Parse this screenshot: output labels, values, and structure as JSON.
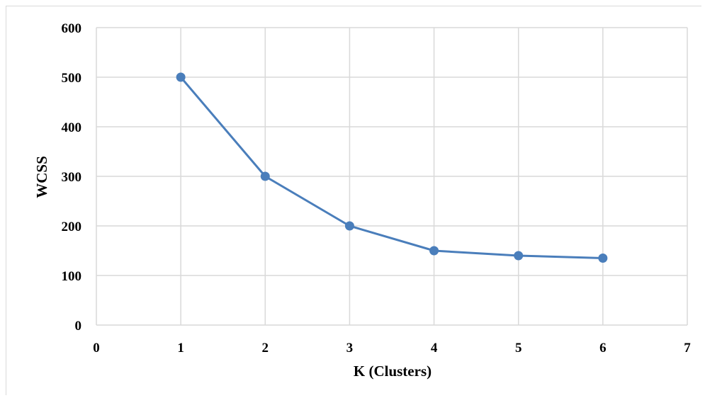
{
  "chart_data": {
    "type": "scatter",
    "mode": "lines+markers",
    "title": "",
    "xlabel": "K (Clusters)",
    "ylabel": "WCSS",
    "xlim": [
      0,
      7
    ],
    "ylim": [
      0,
      600
    ],
    "x_ticks": [
      "0",
      "1",
      "2",
      "3",
      "4",
      "5",
      "6",
      "7"
    ],
    "y_ticks": [
      "0",
      "100",
      "200",
      "300",
      "400",
      "500",
      "600"
    ],
    "grid": true,
    "legend": "none",
    "series": [
      {
        "x": [
          1,
          2,
          3,
          4,
          5,
          6
        ],
        "y": [
          500,
          300,
          200,
          150,
          140,
          135
        ],
        "color": "#4a7ebb"
      }
    ],
    "colors": {
      "series": "#4a7ebb",
      "gridline": "#d9d9d9",
      "text": "#000000"
    }
  }
}
